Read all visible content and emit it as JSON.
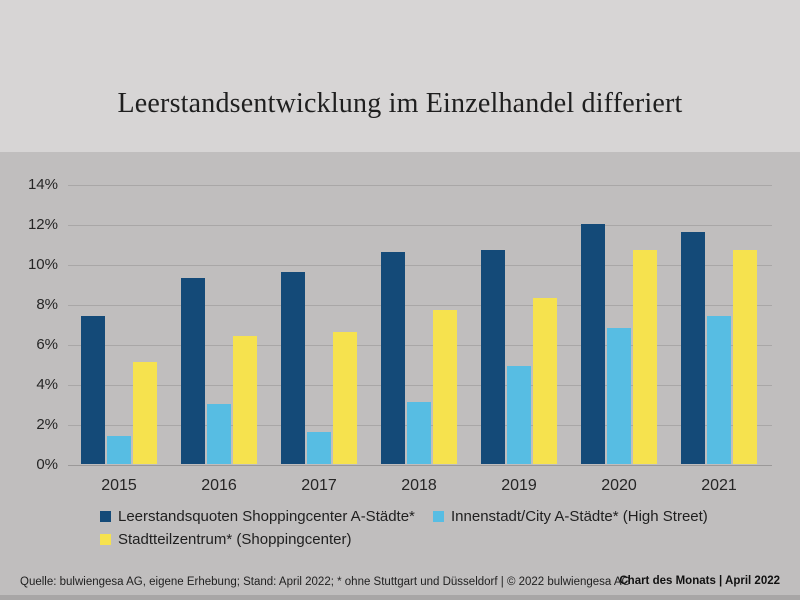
{
  "title": "Leerstandsentwicklung im Einzelhandel differiert",
  "chart_data": {
    "type": "bar",
    "categories": [
      "2015",
      "2016",
      "2017",
      "2018",
      "2019",
      "2020",
      "2021"
    ],
    "series": [
      {
        "name": "Leerstandsquoten Shoppingcenter A-Städte*",
        "color": "#144a78",
        "values": [
          7.4,
          9.3,
          9.6,
          10.6,
          10.7,
          12.0,
          11.6
        ]
      },
      {
        "name": "Innenstadt/City A-Städte* (High Street)",
        "color": "#57bde3",
        "values": [
          1.4,
          3.0,
          1.6,
          3.1,
          4.9,
          6.8,
          7.4
        ]
      },
      {
        "name": "Stadtteilzentrum* (Shoppingcenter)",
        "color": "#f6e24e",
        "values": [
          5.1,
          6.4,
          6.6,
          7.7,
          8.3,
          10.7,
          10.7
        ]
      }
    ],
    "title": "Leerstandsentwicklung im Einzelhandel differiert",
    "xlabel": "",
    "ylabel": "",
    "ylim": [
      0,
      14
    ],
    "ytick_step": 2,
    "ytick_labels": [
      "0%",
      "2%",
      "4%",
      "6%",
      "8%",
      "10%",
      "12%",
      "14%"
    ],
    "grid": true,
    "legend_position": "bottom"
  },
  "legend": {
    "items": [
      {
        "label": "Leerstandsquoten Shoppingcenter A-Städte*",
        "color": "#144a78"
      },
      {
        "label": "Innenstadt/City A-Städte* (High Street)",
        "color": "#57bde3"
      },
      {
        "label": "Stadtteilzentrum* (Shoppingcenter)",
        "color": "#f6e24e"
      }
    ]
  },
  "footer": {
    "source": "Quelle: bulwiengesa AG, eigene Erhebung; Stand: April 2022; * ohne Stuttgart und Düsseldorf | © 2022 bulwiengesa AG",
    "brand": "Chart des Monats | April 2022"
  },
  "colors": {
    "header_bg": "#d7d5d5",
    "chart_bg": "#c0bebe",
    "gridline": "#a9a7a7",
    "bottom_strip": "#a8a6a6",
    "dark_blue": "#144a78",
    "light_blue": "#57bde3",
    "yellow": "#f6e24e"
  }
}
